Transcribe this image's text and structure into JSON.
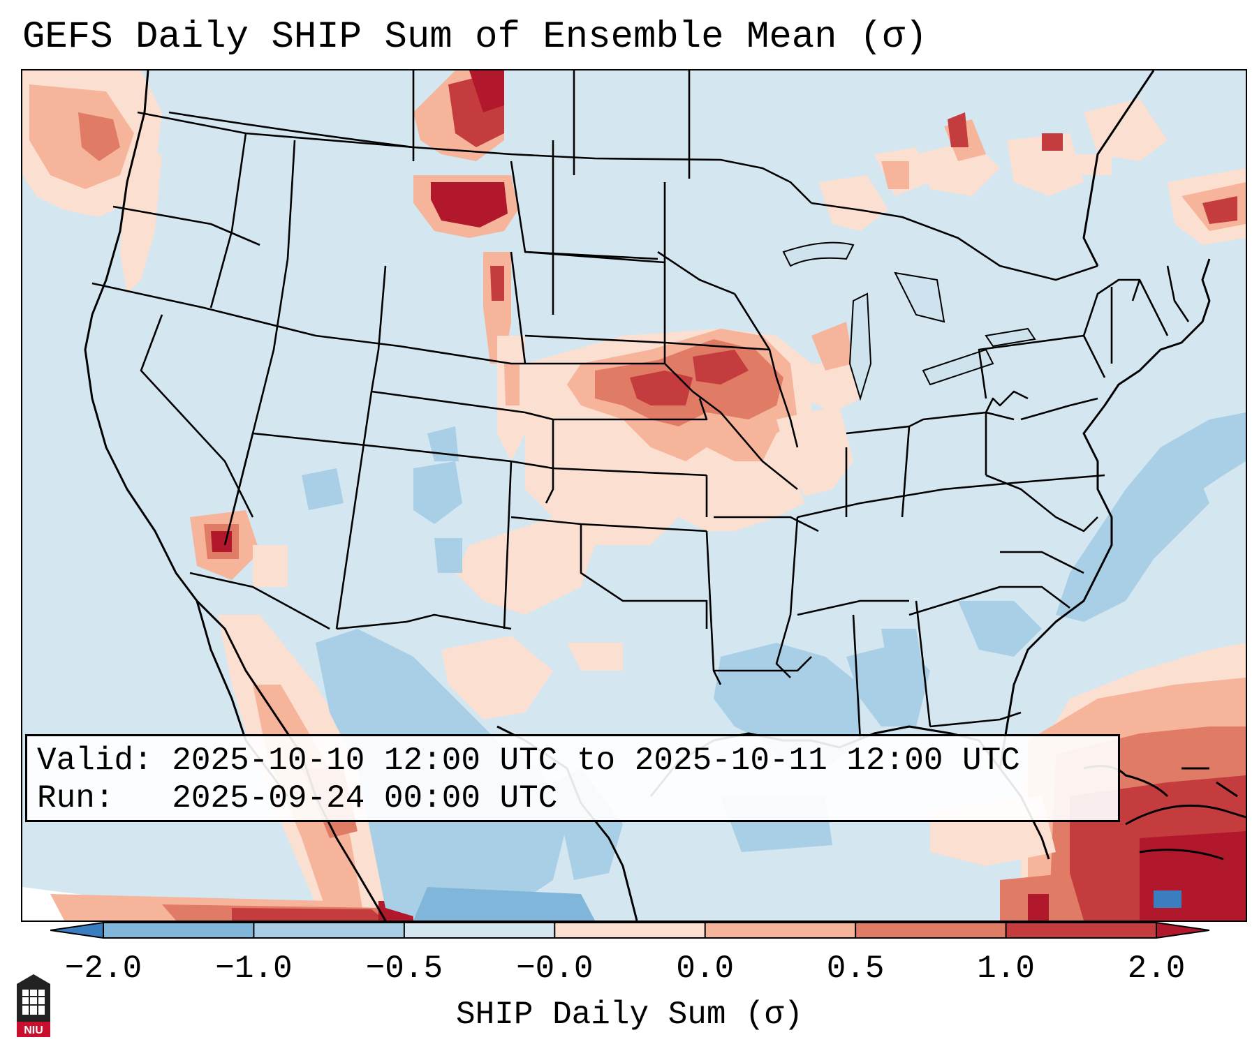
{
  "title": "GEFS Daily SHIP Sum of Ensemble Mean (σ)",
  "info": {
    "valid_label": "Valid:",
    "valid_value": "2025-10-10 12:00 UTC to 2025-10-11 12:00 UTC",
    "run_label": "Run:",
    "run_value": "2025-09-24 00:00 UTC"
  },
  "colorbar": {
    "label": "SHIP Daily Sum (σ)",
    "ticks": [
      "−2.0",
      "−1.0",
      "−0.5",
      "−0.0",
      "0.0",
      "0.5",
      "1.0",
      "2.0"
    ],
    "colors": [
      "#3a7ebf",
      "#7fb6d9",
      "#a8cfe5",
      "#d4e6f0",
      "#fbe0d2",
      "#f6b49a",
      "#e07b66",
      "#c43c3d",
      "#b2182b"
    ],
    "extend": "both"
  },
  "logo": {
    "text": "NIU",
    "icon": "university-logo-icon",
    "color": "#c8102e"
  },
  "map": {
    "region": "Contiguous United States",
    "icon": "map-icon"
  }
}
